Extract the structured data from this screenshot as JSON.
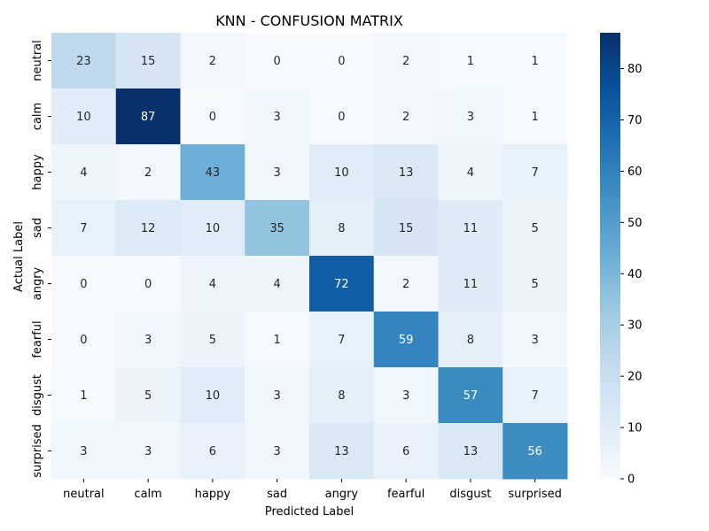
{
  "chart_data": {
    "type": "heatmap",
    "title": "KNN - CONFUSION MATRIX",
    "xlabel": "Predicted Label",
    "ylabel": "Actual Label",
    "x_categories": [
      "neutral",
      "calm",
      "happy",
      "sad",
      "angry",
      "fearful",
      "disgust",
      "surprised"
    ],
    "y_categories": [
      "neutral",
      "calm",
      "happy",
      "sad",
      "angry",
      "fearful",
      "disgust",
      "surprised"
    ],
    "values": [
      [
        23,
        15,
        2,
        0,
        0,
        2,
        1,
        1
      ],
      [
        10,
        87,
        0,
        3,
        0,
        2,
        3,
        1
      ],
      [
        4,
        2,
        43,
        3,
        10,
        13,
        4,
        7
      ],
      [
        7,
        12,
        10,
        35,
        8,
        15,
        11,
        5
      ],
      [
        0,
        0,
        4,
        4,
        72,
        2,
        11,
        5
      ],
      [
        0,
        3,
        5,
        1,
        7,
        59,
        8,
        3
      ],
      [
        1,
        5,
        10,
        3,
        8,
        3,
        57,
        7
      ],
      [
        3,
        3,
        6,
        3,
        13,
        6,
        13,
        56
      ]
    ],
    "colormap": "Blues",
    "colorbar": {
      "range": [
        0,
        87
      ],
      "ticks": [
        0,
        10,
        20,
        30,
        40,
        50,
        60,
        70,
        80
      ]
    },
    "annotations_shown": true
  }
}
